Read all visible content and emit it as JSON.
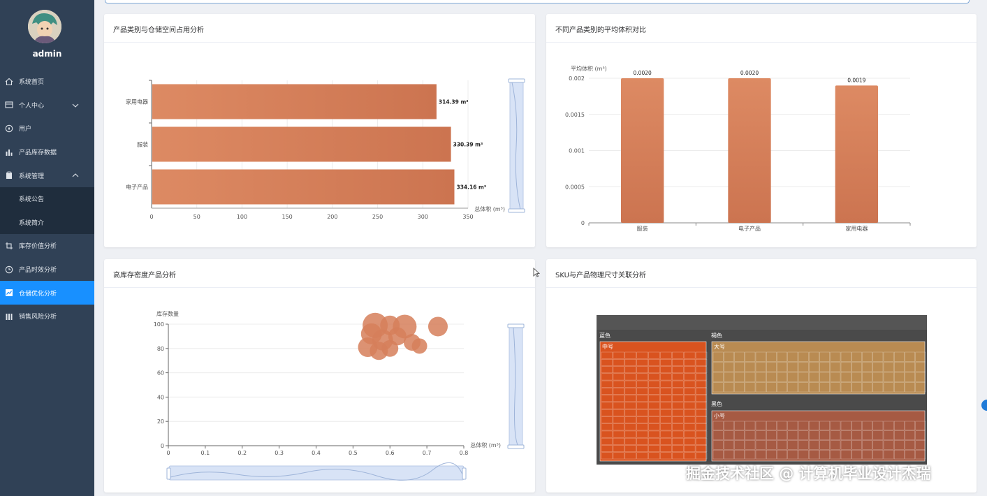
{
  "user": {
    "name": "admin"
  },
  "menu": [
    {
      "label": "系统首页",
      "icon": "home-icon"
    },
    {
      "label": "个人中心",
      "icon": "profile-icon",
      "expand": "down"
    },
    {
      "label": "用户",
      "icon": "user-icon"
    },
    {
      "label": "产品库存数据",
      "icon": "bar-chart-icon"
    },
    {
      "label": "系统管理",
      "icon": "clipboard-icon",
      "expand": "up"
    },
    {
      "label": "系统公告",
      "sub": true
    },
    {
      "label": "系统简介",
      "sub": true
    },
    {
      "label": "库存价值分析",
      "icon": "crop-icon"
    },
    {
      "label": "产品时效分析",
      "icon": "clock-icon"
    },
    {
      "label": "仓储优化分析",
      "icon": "chart-icon",
      "active": true
    },
    {
      "label": "销售风险分析",
      "icon": "columns-icon"
    }
  ],
  "cards": {
    "c1": {
      "title": "产品类别与仓储空间占用分析"
    },
    "c2": {
      "title": "不同产品类别的平均体积对比"
    },
    "c3": {
      "title": "高库存密度产品分析"
    },
    "c4": {
      "title": "SKU与产品物理尺寸关联分析"
    }
  },
  "colors": {
    "bar": "#d4784f",
    "sidebar": "#304156",
    "active": "#1890ff"
  },
  "chart_data": [
    {
      "type": "bar",
      "orientation": "horizontal",
      "categories": [
        "家用电器",
        "服装",
        "电子产品"
      ],
      "values": [
        314.39,
        330.39,
        334.16
      ],
      "data_labels": [
        "314.39 m³",
        "330.39 m³",
        "334.16 m³"
      ],
      "xlabel": "总体积 (m³)",
      "xlim": [
        0,
        350
      ],
      "xticks": [
        0,
        50,
        100,
        150,
        200,
        250,
        300,
        350
      ]
    },
    {
      "type": "bar",
      "categories": [
        "服装",
        "电子产品",
        "家用电器"
      ],
      "values": [
        0.002,
        0.002,
        0.0019
      ],
      "data_labels": [
        "0.0020",
        "0.0020",
        "0.0019"
      ],
      "ylabel": "平均体积 (m³)",
      "ylim": [
        0,
        0.002
      ],
      "yticks": [
        0,
        0.0005,
        0.001,
        0.0015,
        0.002
      ],
      "ytick_labels": [
        "0",
        "0.0005",
        "0.001",
        "0.0015",
        "0.002"
      ]
    },
    {
      "type": "scatter",
      "xlabel": "总体积 (m³)",
      "ylabel": "库存数量",
      "xlim": [
        0,
        0.8
      ],
      "ylim": [
        0,
        100
      ],
      "xticks": [
        0,
        0.1,
        0.2,
        0.3,
        0.4,
        0.5,
        0.6,
        0.7,
        0.8
      ],
      "yticks": [
        0,
        20,
        40,
        60,
        80,
        100
      ],
      "points": [
        {
          "x": 0.56,
          "y": 99,
          "r": 18
        },
        {
          "x": 0.6,
          "y": 99,
          "r": 14
        },
        {
          "x": 0.64,
          "y": 98,
          "r": 17
        },
        {
          "x": 0.55,
          "y": 92,
          "r": 15
        },
        {
          "x": 0.62,
          "y": 90,
          "r": 13
        },
        {
          "x": 0.58,
          "y": 87,
          "r": 15
        },
        {
          "x": 0.66,
          "y": 85,
          "r": 12
        },
        {
          "x": 0.54,
          "y": 81,
          "r": 14
        },
        {
          "x": 0.6,
          "y": 80,
          "r": 12
        },
        {
          "x": 0.68,
          "y": 82,
          "r": 11
        },
        {
          "x": 0.57,
          "y": 78,
          "r": 13
        },
        {
          "x": 0.73,
          "y": 98,
          "r": 14
        }
      ]
    },
    {
      "type": "treemap",
      "groups": [
        {
          "label": "蓝色",
          "children": [
            {
              "label": "中号",
              "color": "#d9531f"
            }
          ]
        },
        {
          "label": "褐色",
          "children": [
            {
              "label": "大号",
              "color": "#b98b52"
            }
          ]
        },
        {
          "label": "黑色",
          "children": [
            {
              "label": "小号",
              "color": "#a65a43"
            }
          ]
        }
      ]
    }
  ],
  "watermark": "掘金技术社区 @ 计算机毕业设计杰瑞"
}
